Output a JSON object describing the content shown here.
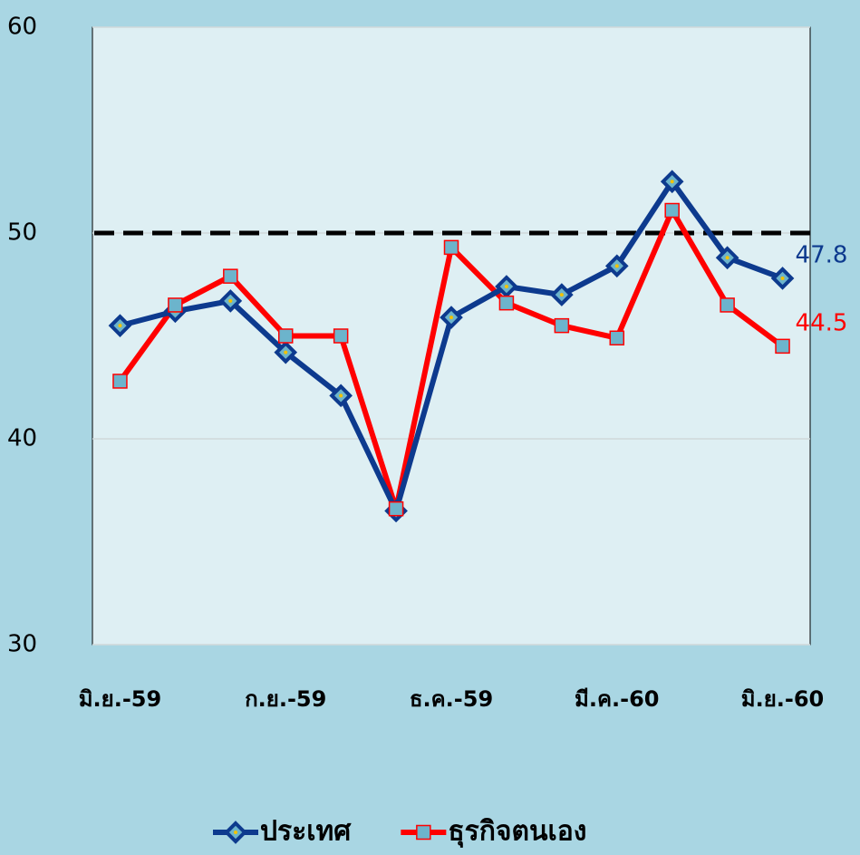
{
  "chart_data": {
    "type": "line",
    "categories": [
      "มิ.ย.-59",
      null,
      null,
      "ก.ย.-59",
      null,
      null,
      "ธ.ค.-59",
      null,
      null,
      "มี.ค.-60",
      null,
      null,
      "มิ.ย.-60"
    ],
    "series": [
      {
        "name": "ประเทศ",
        "color": "#0d3a8e",
        "marker": "diamond",
        "values": [
          45.5,
          46.2,
          46.7,
          44.2,
          42.1,
          36.5,
          45.9,
          47.4,
          47.0,
          48.4,
          52.5,
          48.8,
          47.8
        ]
      },
      {
        "name": "ธุรกิจตนเอง",
        "color": "#ff0000",
        "marker": "square",
        "values": [
          42.8,
          46.5,
          47.9,
          45.0,
          45.0,
          36.6,
          49.3,
          46.6,
          45.5,
          44.9,
          51.1,
          46.5,
          44.5
        ]
      }
    ],
    "ylim": [
      30,
      60
    ],
    "yticks": [
      30,
      40,
      50,
      60
    ],
    "grid": true,
    "reference_line": 50,
    "legend": "bottom"
  }
}
